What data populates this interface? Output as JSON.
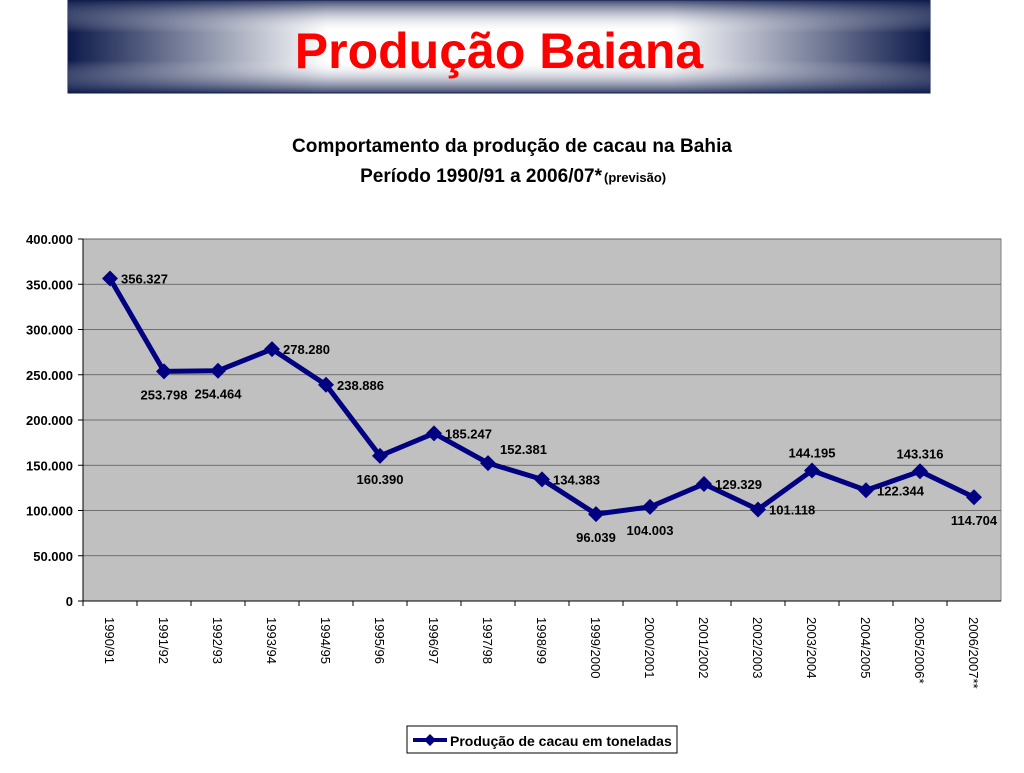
{
  "header": {
    "title": "Produção Baiana"
  },
  "chart_data": {
    "type": "line",
    "title": "Comportamento da produção de cacau na Bahia",
    "subtitle": "Período 1990/91 a 2006/07*",
    "subtitle_note": "(previsão)",
    "categories": [
      "1990/91",
      "1991/92",
      "1992/93",
      "1993/94",
      "1994/95",
      "1995/96",
      "1996/97",
      "1997/98",
      "1998/99",
      "1999/2000",
      "2000/2001",
      "2001/2002",
      "2002/2003",
      "2003/2004",
      "2004/2005",
      "2005/2006*",
      "2006/2007**"
    ],
    "series": [
      {
        "name": "Produção de cacau em toneladas",
        "color": "#000080",
        "values": [
          356327,
          253798,
          254464,
          278280,
          238886,
          160390,
          185247,
          152381,
          134383,
          96039,
          104003,
          129329,
          101118,
          144195,
          122344,
          143316,
          114704
        ],
        "value_labels": [
          "356.327",
          "253.798",
          "254.464",
          "278.280",
          "238.886",
          "160.390",
          "185.247",
          "152.381",
          "134.383",
          "96.039",
          "104.003",
          "129.329",
          "101.118",
          "144.195",
          "122.344",
          "143.316",
          "114.704"
        ]
      }
    ],
    "ylim": [
      0,
      400000
    ],
    "yticks": [
      0,
      {
        "value": 50000,
        "label": "50.000"
      },
      {
        "value": 100000,
        "label": "100.000"
      },
      {
        "value": 150000,
        "label": "150.000"
      },
      {
        "value": 200000,
        "label": "200.000"
      },
      {
        "value": 250000,
        "label": "250.000"
      },
      {
        "value": 300000,
        "label": "300.000"
      },
      {
        "value": 350000,
        "label": "350.000"
      },
      {
        "value": 400000,
        "label": "400.000"
      }
    ],
    "grid": true,
    "legend": "bottom"
  }
}
